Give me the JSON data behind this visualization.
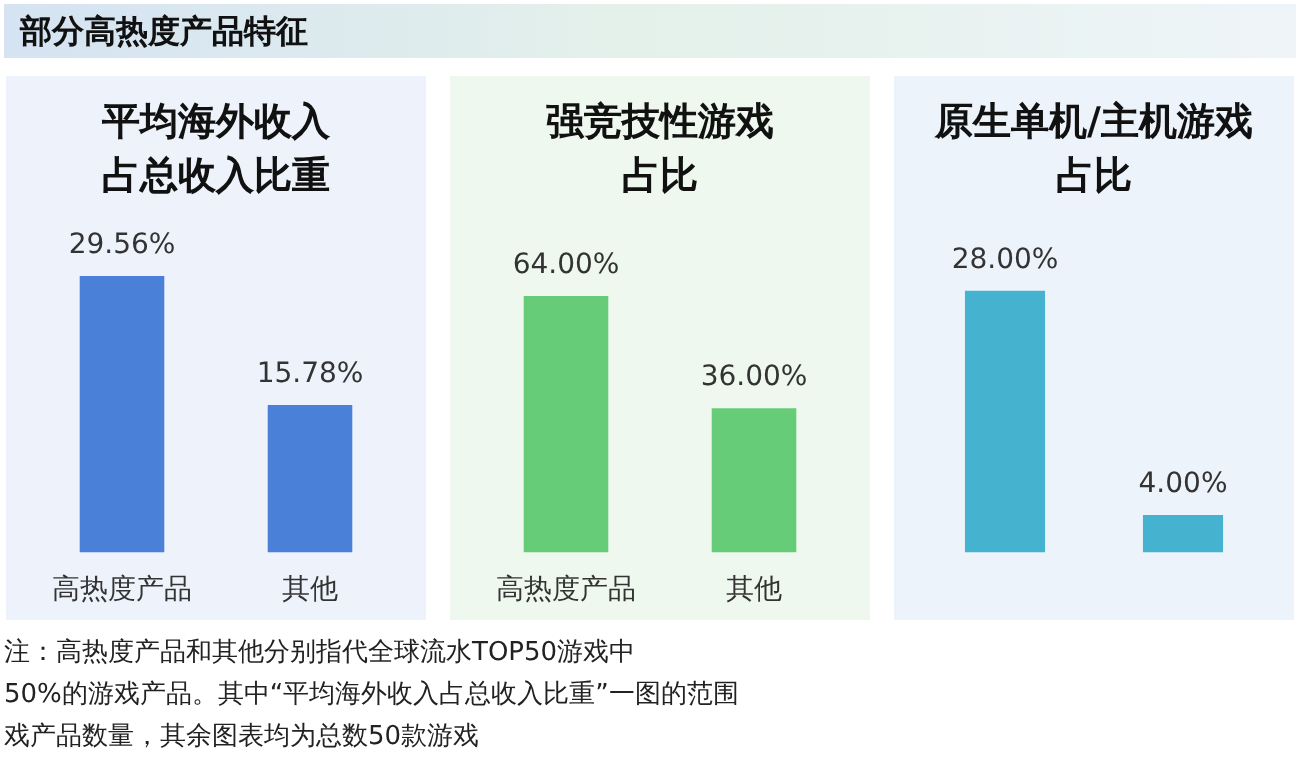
{
  "chart_data": [
    {
      "type": "bar",
      "title": "平均海外收入占总收入比重",
      "categories": [
        "高热度产品",
        "其他"
      ],
      "values": [
        29.56,
        15.78
      ],
      "value_labels": [
        "29.56%",
        "15.78%"
      ],
      "color": "#4a80d8",
      "annotations": [
        "部分高热度产品特征"
      ]
    },
    {
      "type": "bar",
      "title": "强竞技性游戏占比",
      "categories": [
        "高热度产品",
        "其他"
      ],
      "values": [
        64.0,
        36.0
      ],
      "value_labels": [
        "64.00%",
        "36.00%"
      ],
      "color": "#66cc77"
    },
    {
      "type": "bar",
      "title": "原生单机/主机游戏占比",
      "categories": [
        null,
        null
      ],
      "values": [
        28.0,
        4.0
      ],
      "value_labels": [
        "28.00%",
        "4.00%"
      ],
      "color": "#45b3d0",
      "annotations": [
        "注：高热度产品和其他分别指代全球流水TOP50游戏中",
        "50%的游戏产品。其中“平均海外收入占总收入比重”一图的范围",
        "戏产品数量，其余图表均为总数50款游戏"
      ]
    }
  ]
}
